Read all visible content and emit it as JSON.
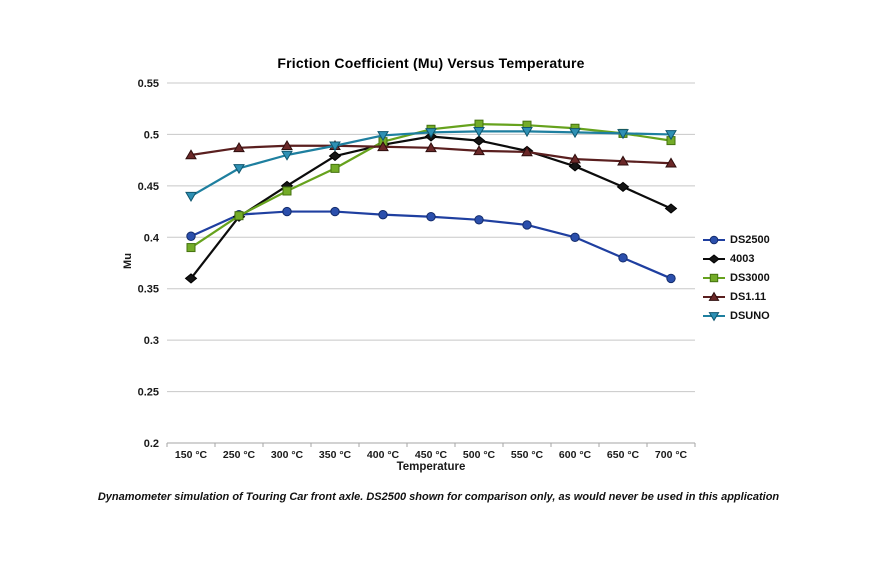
{
  "caption": "Dynamometer simulation of Touring Car front axle. DS2500 shown for comparison only, as would never be used in this application",
  "chart_data": {
    "type": "line",
    "title": "Friction Coefficient (Mu) Versus Temperature",
    "xlabel": "Temperature",
    "ylabel": "Mu",
    "categories": [
      "150 °C",
      "250 °C",
      "300 °C",
      "350 °C",
      "400 °C",
      "450 °C",
      "500 °C",
      "550 °C",
      "600 °C",
      "650 °C",
      "700 °C"
    ],
    "ylim": [
      0.2,
      0.55
    ],
    "y_tick_step": 0.05,
    "y_tick_labels": [
      "0.55",
      "0.5",
      "0.45",
      "0.4",
      "0.35",
      "0.3",
      "0.25",
      "0.2"
    ],
    "grid": true,
    "legend_position": "right",
    "colors": {
      "gridline": "#c8c8c8",
      "axis": "#a6a6a6",
      "tick_text": "#1a1a1a"
    },
    "series": [
      {
        "name": "DS2500",
        "marker": "circle",
        "line_color": "#1f3fa0",
        "marker_fill": "#2b4fac",
        "marker_edge": "#132b6b",
        "values": [
          0.401,
          0.422,
          0.425,
          0.425,
          0.422,
          0.42,
          0.417,
          0.412,
          0.4,
          0.38,
          0.36
        ]
      },
      {
        "name": "4003",
        "marker": "diamond",
        "line_color": "#0c0c0c",
        "marker_fill": "#151515",
        "marker_edge": "#000000",
        "values": [
          0.36,
          0.42,
          0.45,
          0.479,
          0.49,
          0.498,
          0.494,
          0.484,
          0.469,
          0.449,
          0.428
        ]
      },
      {
        "name": "DS3000",
        "marker": "square",
        "line_color": "#66a21d",
        "marker_fill": "#74ac28",
        "marker_edge": "#44720f",
        "values": [
          0.39,
          0.421,
          0.445,
          0.467,
          0.493,
          0.505,
          0.51,
          0.509,
          0.506,
          0.501,
          0.494
        ]
      },
      {
        "name": "DS1.11",
        "marker": "triangle-up",
        "line_color": "#5a1f1f",
        "marker_fill": "#6b2828",
        "marker_edge": "#2e0e0e",
        "values": [
          0.48,
          0.487,
          0.489,
          0.489,
          0.488,
          0.487,
          0.484,
          0.483,
          0.476,
          0.474,
          0.472
        ]
      },
      {
        "name": "DSUNO",
        "marker": "triangle-down",
        "line_color": "#1e7f9f",
        "marker_fill": "#2e90b4",
        "marker_edge": "#0f566e",
        "values": [
          0.44,
          0.467,
          0.48,
          0.489,
          0.499,
          0.502,
          0.503,
          0.503,
          0.502,
          0.501,
          0.5
        ]
      }
    ]
  }
}
